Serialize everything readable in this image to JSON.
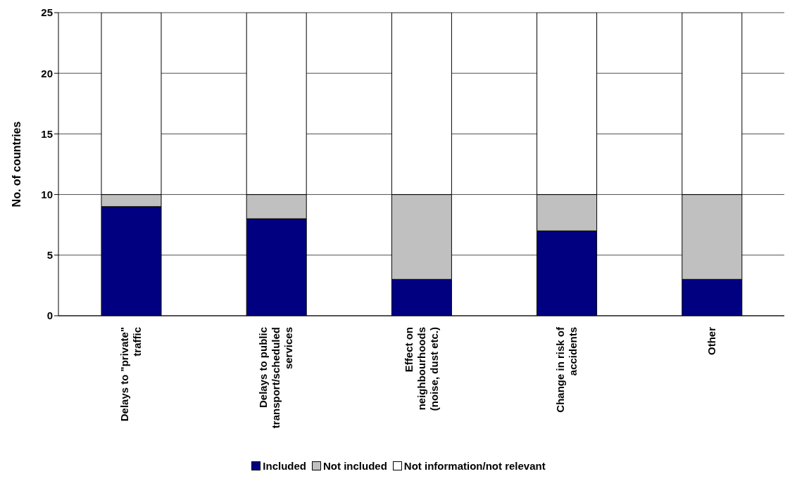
{
  "chart_data": {
    "type": "bar",
    "stacked": true,
    "ylabel": "No. of countries",
    "categories": [
      "Delays to \"private\" traffic",
      "Delays to public transport/scheduled services",
      "Effect on neighbourhoods (noise, dust etc.)",
      "Change in risk of accidents",
      "Other"
    ],
    "series": [
      {
        "name": "Included",
        "color": "#000080",
        "values": [
          9,
          8,
          3,
          7,
          3
        ]
      },
      {
        "name": "Not included",
        "color": "#c0c0c0",
        "values": [
          1,
          2,
          7,
          3,
          7
        ]
      },
      {
        "name": "Not information/not relevant",
        "color": "#ffffff",
        "values": [
          15,
          15,
          15,
          15,
          15
        ]
      }
    ],
    "ylim": [
      0,
      25
    ],
    "yticks": [
      0,
      5,
      10,
      15,
      20,
      25
    ],
    "grid": "y",
    "legend": "bottom"
  }
}
